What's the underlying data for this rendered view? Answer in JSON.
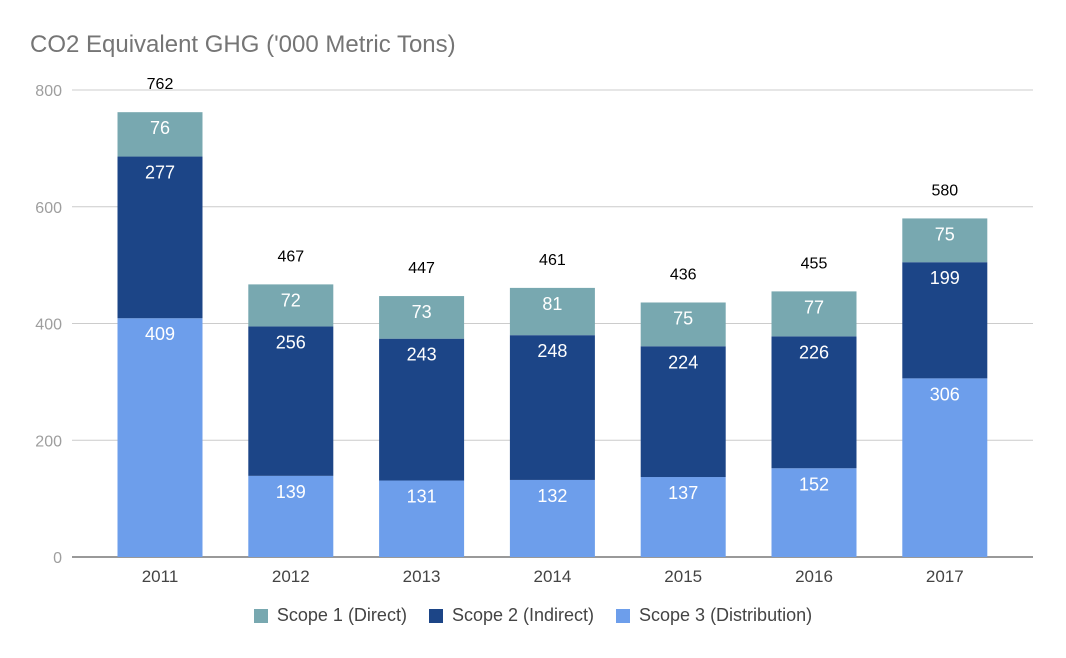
{
  "colors": {
    "scope1": "#78a8b0",
    "scope2": "#1c4587",
    "scope3": "#6d9eeb",
    "grid": "#cccccc",
    "axis": "#333333",
    "tick_text": "#9e9e9e",
    "category_text": "#444444",
    "total_label": "#000000",
    "segment_label": "#ffffff"
  },
  "chart_data": {
    "type": "bar",
    "stacked": true,
    "title": "CO2 Equivalent GHG ('000 Metric Tons)",
    "xlabel": "",
    "ylabel": "",
    "categories": [
      "2011",
      "2012",
      "2013",
      "2014",
      "2015",
      "2016",
      "2017"
    ],
    "series": [
      {
        "name": "Scope 3 (Distribution)",
        "color": "#6d9eeb",
        "values": [
          409,
          139,
          131,
          132,
          137,
          152,
          306
        ]
      },
      {
        "name": "Scope 2 (Indirect)",
        "color": "#1c4587",
        "values": [
          277,
          256,
          243,
          248,
          224,
          226,
          199
        ]
      },
      {
        "name": "Scope 1 (Direct)",
        "color": "#78a8b0",
        "values": [
          76,
          72,
          73,
          81,
          75,
          77,
          75
        ]
      }
    ],
    "totals": [
      762,
      467,
      447,
      461,
      436,
      455,
      580
    ],
    "ylim": [
      0,
      800
    ],
    "yticks": [
      "0",
      "200",
      "400",
      "600",
      "800"
    ],
    "grid": true,
    "legend_position": "bottom",
    "legend_order": [
      "Scope 1 (Direct)",
      "Scope 2 (Indirect)",
      "Scope 3 (Distribution)"
    ]
  }
}
